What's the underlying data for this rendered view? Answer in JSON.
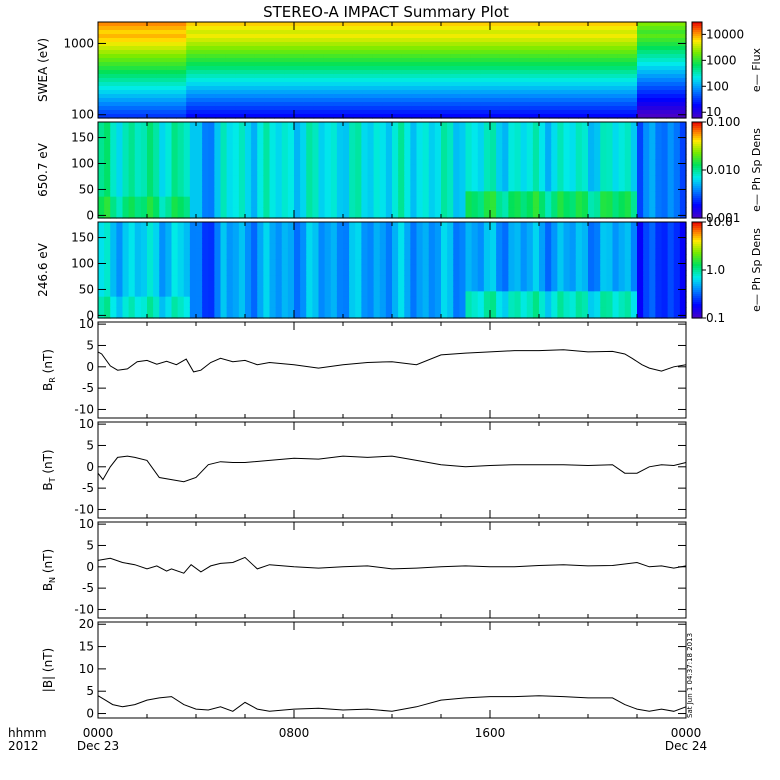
{
  "title": "STEREO-A IMPACT Summary Plot",
  "stamp": "Sat Jun  1 04:37:18 2013",
  "x_axis": {
    "tick_labels": [
      "0000",
      "0800",
      "1600",
      "0000"
    ],
    "date_labels": [
      "Dec 23",
      "",
      "",
      "Dec 24"
    ],
    "left_label_1": "hhmm",
    "left_label_2": "2012"
  },
  "chart_data": [
    {
      "type": "heatmap",
      "ylabel": "SWEA (eV)",
      "yscale": "log",
      "ylim": [
        90,
        2000
      ],
      "y_tick_labels": [
        "100",
        "1000"
      ],
      "colorbar": {
        "label": "e— Flux",
        "scale": "log",
        "range": [
          6,
          30000
        ],
        "tick_labels": [
          "10",
          "100",
          "1000",
          "10000"
        ]
      },
      "columns": [
        {
          "hours": [
            0,
            3.7
          ],
          "profile": "A"
        },
        {
          "hours": [
            3.7,
            22.0
          ],
          "profile": "B"
        },
        {
          "hours": [
            22.0,
            24.0
          ],
          "profile": "C"
        }
      ]
    },
    {
      "type": "heatmap",
      "ylabel": "650.7 eV",
      "ylim": [
        -5,
        180
      ],
      "y_tick_labels": [
        "0",
        "50",
        "100",
        "150"
      ],
      "colorbar": {
        "label": "e— Ph Sp Dens",
        "scale": "log",
        "range": [
          0.001,
          0.1
        ],
        "tick_labels": [
          "0.001",
          "0.010",
          "0.100"
        ]
      }
    },
    {
      "type": "heatmap",
      "ylabel": "246.6 eV",
      "ylim": [
        -5,
        180
      ],
      "y_tick_labels": [
        "0",
        "50",
        "100",
        "150"
      ],
      "colorbar": {
        "label": "e— Ph Sp Dens",
        "scale": "log",
        "range": [
          0.1,
          10
        ],
        "tick_labels": [
          "0.1",
          "1.0",
          "10.0"
        ]
      }
    },
    {
      "type": "line",
      "ylabel": "BR (nT)",
      "ylabel_main": "B",
      "ylabel_sub": "R",
      "ylabel_unit": " (nT)",
      "ylim": [
        -12,
        10.5
      ],
      "y_tick_labels": [
        "-10",
        "-5",
        "0",
        "5",
        "10"
      ],
      "x": [
        0,
        0.15,
        0.5,
        0.8,
        1.2,
        1.6,
        2.0,
        2.4,
        2.8,
        3.2,
        3.6,
        3.9,
        4.2,
        4.6,
        5.0,
        5.5,
        6.0,
        6.5,
        7.0,
        8.0,
        9.0,
        10.0,
        11.0,
        12.0,
        13.0,
        14.0,
        15.0,
        16.0,
        17.0,
        18.0,
        19.0,
        20.0,
        21.0,
        21.5,
        21.8,
        22.2,
        22.5,
        23.0,
        23.5,
        24.0
      ],
      "y": [
        3.5,
        3.0,
        0.2,
        -0.8,
        -0.5,
        1.2,
        1.5,
        0.6,
        1.3,
        0.5,
        1.8,
        -1.2,
        -0.8,
        1.0,
        2.0,
        1.2,
        1.5,
        0.5,
        1.0,
        0.5,
        -0.3,
        0.5,
        1.0,
        1.2,
        0.5,
        2.8,
        3.2,
        3.5,
        3.8,
        3.8,
        4.0,
        3.5,
        3.6,
        3.0,
        2.0,
        0.5,
        -0.3,
        -1.0,
        0.0,
        0.5
      ]
    },
    {
      "type": "line",
      "ylabel": "BT (nT)",
      "ylabel_main": "B",
      "ylabel_sub": "T",
      "ylabel_unit": " (nT)",
      "ylim": [
        -12,
        10.5
      ],
      "y_tick_labels": [
        "-10",
        "-5",
        "0",
        "5",
        "10"
      ],
      "x": [
        0,
        0.2,
        0.5,
        0.8,
        1.2,
        1.5,
        2.0,
        2.5,
        3.0,
        3.5,
        4.0,
        4.5,
        5.0,
        5.5,
        6.0,
        7.0,
        8.0,
        9.0,
        10.0,
        11.0,
        12.0,
        12.5,
        13.0,
        14.0,
        15.0,
        16.0,
        17.0,
        18.0,
        19.0,
        20.0,
        21.0,
        21.5,
        22.0,
        22.5,
        23.0,
        23.5,
        24.0
      ],
      "y": [
        -1.5,
        -3.0,
        0.0,
        2.2,
        2.5,
        2.2,
        1.5,
        -2.5,
        -3.0,
        -3.5,
        -2.5,
        0.5,
        1.2,
        1.0,
        1.0,
        1.5,
        2.0,
        1.8,
        2.5,
        2.2,
        2.5,
        2.0,
        1.5,
        0.5,
        0.0,
        0.3,
        0.5,
        0.5,
        0.5,
        0.3,
        0.5,
        -1.5,
        -1.5,
        0.0,
        0.5,
        0.3,
        1.0
      ]
    },
    {
      "type": "line",
      "ylabel": "BN (nT)",
      "ylabel_main": "B",
      "ylabel_sub": "N",
      "ylabel_unit": " (nT)",
      "ylim": [
        -12,
        10.5
      ],
      "y_tick_labels": [
        "-10",
        "-5",
        "0",
        "5",
        "10"
      ],
      "x": [
        0,
        0.5,
        1.0,
        1.5,
        2.0,
        2.4,
        2.8,
        3.0,
        3.5,
        3.8,
        4.2,
        4.6,
        5.0,
        5.5,
        6.0,
        6.5,
        7.0,
        8.0,
        9.0,
        10.0,
        11.0,
        12.0,
        13.0,
        14.0,
        15.0,
        16.0,
        17.0,
        18.0,
        19.0,
        20.0,
        21.0,
        22.0,
        22.5,
        23.0,
        23.5,
        24.0
      ],
      "y": [
        1.5,
        2.0,
        1.0,
        0.5,
        -0.5,
        0.2,
        -1.0,
        -0.5,
        -1.5,
        0.5,
        -1.2,
        0.2,
        0.8,
        1.0,
        2.2,
        -0.5,
        0.5,
        0.0,
        -0.3,
        0.0,
        0.2,
        -0.5,
        -0.3,
        0.0,
        0.2,
        0.0,
        0.0,
        0.3,
        0.5,
        0.2,
        0.3,
        1.0,
        0.0,
        0.2,
        -0.3,
        0.2
      ]
    },
    {
      "type": "line",
      "ylabel": "|B| (nT)",
      "ylabel_main": "|B|",
      "ylabel_sub": "",
      "ylabel_unit": " (nT)",
      "ylim": [
        -1,
        20.5
      ],
      "y_tick_labels": [
        "0",
        "5",
        "10",
        "15",
        "20"
      ],
      "x": [
        0,
        0.3,
        0.6,
        1.0,
        1.5,
        2.0,
        2.5,
        3.0,
        3.5,
        4.0,
        4.5,
        5.0,
        5.5,
        6.0,
        6.5,
        7.0,
        8.0,
        9.0,
        10.0,
        11.0,
        12.0,
        13.0,
        14.0,
        15.0,
        16.0,
        17.0,
        18.0,
        19.0,
        20.0,
        21.0,
        21.5,
        22.0,
        22.5,
        23.0,
        23.5,
        24.0
      ],
      "y": [
        4.0,
        3.0,
        2.0,
        1.5,
        2.0,
        3.0,
        3.5,
        3.8,
        2.0,
        1.0,
        0.8,
        1.5,
        0.5,
        2.5,
        1.0,
        0.5,
        1.0,
        1.2,
        0.8,
        1.0,
        0.5,
        1.5,
        3.0,
        3.5,
        3.8,
        3.8,
        4.0,
        3.8,
        3.5,
        3.5,
        2.0,
        1.0,
        0.5,
        1.0,
        0.5,
        1.5
      ]
    }
  ]
}
